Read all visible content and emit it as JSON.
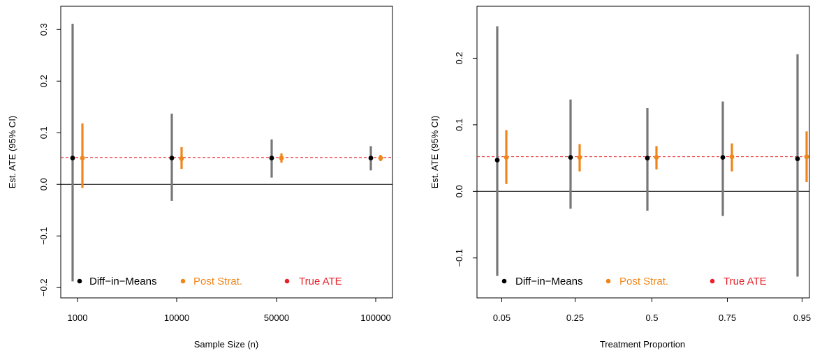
{
  "colors": {
    "diff_in_means_bar": "#777777",
    "diff_in_means_point": "#000000",
    "post_strat": "#F0861A",
    "true_ate": "#E8202A",
    "zero_line": "#000000",
    "frame": "#000000",
    "text": "#000000"
  },
  "chart_data": [
    {
      "type": "scatter",
      "subtype": "point-with-error-bars",
      "title": "",
      "xlabel": "Sample Size (n)",
      "ylabel": "Est. ATE (95% CI)",
      "categories": [
        "1000",
        "10000",
        "50000",
        "100000"
      ],
      "ylim": [
        -0.22,
        0.345
      ],
      "yticks": [
        -0.2,
        -0.1,
        0.0,
        0.1,
        0.2,
        0.3
      ],
      "ytick_labels": [
        "−0.2",
        "−0.1",
        "0.0",
        "0.1",
        "0.2",
        "0.3"
      ],
      "true_ate": 0.052,
      "legend": {
        "placement": "bottom-inside",
        "entries": [
          "Diff−in−Means",
          "Post Strat.",
          "True ATE"
        ]
      },
      "series": [
        {
          "name": "Diff−in−Means",
          "estimate": [
            0.051,
            0.051,
            0.051,
            0.051
          ],
          "lower": [
            -0.188,
            -0.032,
            0.013,
            0.027
          ],
          "upper": [
            0.311,
            0.137,
            0.087,
            0.074
          ]
        },
        {
          "name": "Post Strat.",
          "estimate": [
            0.051,
            0.05,
            0.051,
            0.051
          ],
          "lower": [
            -0.007,
            0.03,
            0.042,
            0.045
          ],
          "upper": [
            0.118,
            0.072,
            0.06,
            0.057
          ]
        }
      ]
    },
    {
      "type": "scatter",
      "subtype": "point-with-error-bars",
      "title": "",
      "xlabel": "Treatment Proportion",
      "ylabel": "Est. ATE (95% CI)",
      "categories": [
        "0.05",
        "0.25",
        "0.5",
        "0.75",
        "0.95"
      ],
      "ylim": [
        -0.16,
        0.278
      ],
      "yticks": [
        -0.1,
        0.0,
        0.1,
        0.2
      ],
      "ytick_labels": [
        "−0.1",
        "0.0",
        "0.1",
        "0.2"
      ],
      "true_ate": 0.052,
      "legend": {
        "placement": "bottom-inside",
        "entries": [
          "Diff−in−Means",
          "Post Strat.",
          "True ATE"
        ]
      },
      "series": [
        {
          "name": "Diff−in−Means",
          "estimate": [
            0.047,
            0.051,
            0.05,
            0.051,
            0.049
          ],
          "lower": [
            -0.127,
            -0.026,
            -0.029,
            -0.037,
            -0.128
          ],
          "upper": [
            0.248,
            0.138,
            0.125,
            0.135,
            0.206
          ]
        },
        {
          "name": "Post Strat.",
          "estimate": [
            0.051,
            0.051,
            0.051,
            0.052,
            0.052
          ],
          "lower": [
            0.011,
            0.03,
            0.033,
            0.03,
            0.014
          ],
          "upper": [
            0.092,
            0.071,
            0.068,
            0.072,
            0.09
          ]
        }
      ]
    }
  ]
}
